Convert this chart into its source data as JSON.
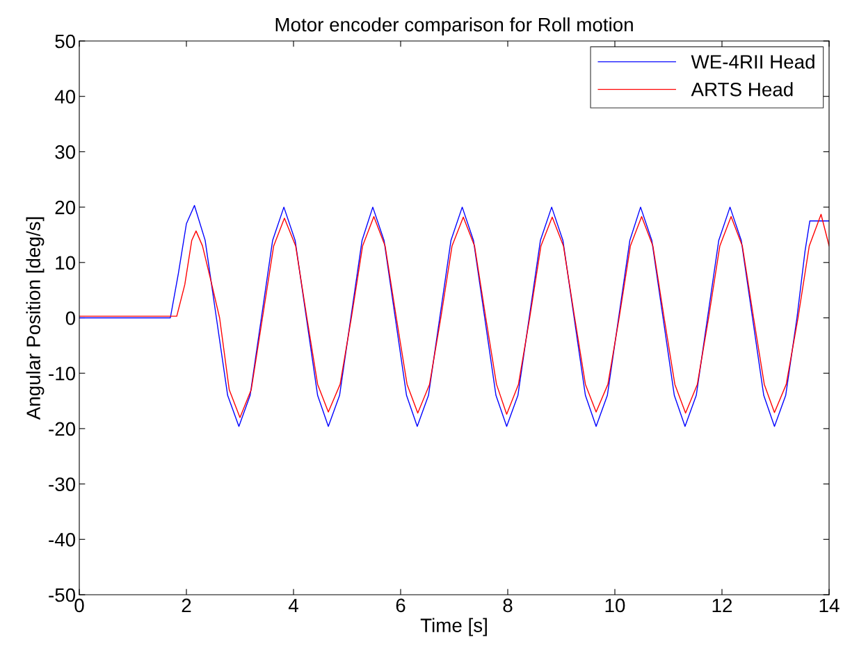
{
  "chart_data": {
    "type": "line",
    "title": "Motor encoder comparison for Roll motion",
    "xlabel": "Time [s]",
    "ylabel": "Angular Position [deg/s]",
    "xlim": [
      0,
      14
    ],
    "ylim": [
      -50,
      50
    ],
    "xticks": [
      0,
      2,
      4,
      6,
      8,
      10,
      12,
      14
    ],
    "yticks": [
      -50,
      -40,
      -30,
      -20,
      -10,
      0,
      10,
      20,
      30,
      40,
      50
    ],
    "grid": false,
    "legend": "top right",
    "series": [
      {
        "name": "WE-4RII Head",
        "color": "#0000ff",
        "x": [
          0,
          1.7,
          1.85,
          2.0,
          2.15,
          2.35,
          2.56,
          2.77,
          2.98,
          3.19,
          3.4,
          3.61,
          3.82,
          4.03,
          4.24,
          4.45,
          4.65,
          4.86,
          5.07,
          5.28,
          5.48,
          5.69,
          5.9,
          6.11,
          6.31,
          6.52,
          6.73,
          6.94,
          7.15,
          7.36,
          7.57,
          7.78,
          7.98,
          8.19,
          8.4,
          8.61,
          8.82,
          9.03,
          9.24,
          9.45,
          9.65,
          9.86,
          10.07,
          10.28,
          10.48,
          10.69,
          10.9,
          11.11,
          11.31,
          11.52,
          11.73,
          11.94,
          12.15,
          12.36,
          12.57,
          12.78,
          12.98,
          13.19,
          13.4,
          13.55,
          13.64,
          14
        ],
        "values": [
          0,
          0,
          8,
          17,
          20.3,
          14,
          0,
          -14,
          -19.6,
          -14,
          0,
          14,
          20,
          14,
          0,
          -14,
          -19.6,
          -14,
          0,
          14,
          20,
          14,
          0,
          -14,
          -19.6,
          -14,
          0,
          14,
          20,
          14,
          0,
          -14,
          -19.6,
          -14,
          0,
          14,
          20,
          14,
          0,
          -14,
          -19.6,
          -14,
          0,
          14,
          20,
          14,
          0,
          -14,
          -19.6,
          -14,
          0,
          14,
          20,
          14,
          0,
          -14,
          -19.6,
          -14,
          0,
          12,
          17.5,
          17.5
        ]
      },
      {
        "name": "ARTS Head",
        "color": "#ff0000",
        "x": [
          0,
          1.82,
          1.97,
          2.1,
          2.18,
          2.3,
          2.45,
          2.62,
          2.8,
          3.0,
          3.21,
          3.42,
          3.63,
          3.83,
          4.04,
          4.25,
          4.45,
          4.65,
          4.87,
          5.08,
          5.29,
          5.5,
          5.71,
          5.92,
          6.12,
          6.32,
          6.54,
          6.75,
          6.96,
          7.17,
          7.38,
          7.59,
          7.79,
          7.98,
          8.2,
          8.41,
          8.62,
          8.83,
          9.04,
          9.25,
          9.45,
          9.65,
          9.87,
          10.08,
          10.29,
          10.5,
          10.71,
          10.92,
          11.12,
          11.32,
          11.54,
          11.75,
          11.96,
          12.17,
          12.38,
          12.59,
          12.79,
          12.98,
          13.2,
          13.42,
          13.63,
          13.85,
          14
        ],
        "values": [
          0.3,
          0.3,
          6,
          14,
          15.7,
          13,
          7,
          0,
          -13,
          -18,
          -13,
          0,
          13,
          18,
          13,
          0,
          -12,
          -17,
          -12,
          0,
          13,
          18.3,
          13,
          0,
          -12,
          -17.2,
          -12,
          0,
          13,
          18.2,
          13,
          0,
          -12,
          -17.4,
          -12,
          0,
          13,
          18.2,
          13,
          0,
          -12,
          -17,
          -12,
          0,
          13,
          18.3,
          13,
          0,
          -12,
          -17.2,
          -12,
          0,
          13,
          18.3,
          13,
          0,
          -12,
          -17.1,
          -12,
          0,
          13,
          18.7,
          13
        ]
      }
    ]
  }
}
